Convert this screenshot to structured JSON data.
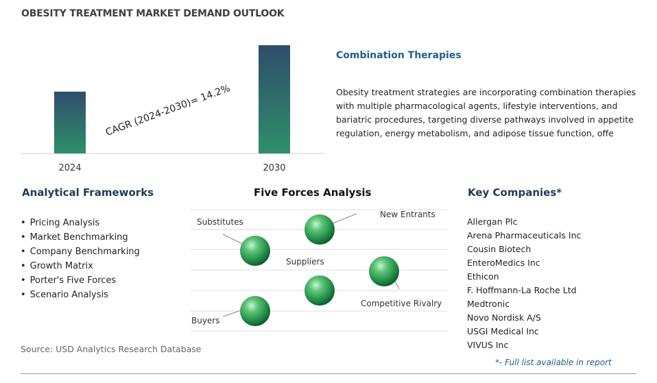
{
  "title": "OBESITY TREATMENT MARKET DEMAND OUTLOOK",
  "chart_data": {
    "type": "bar",
    "categories": [
      "2024",
      "2030"
    ],
    "values": [
      1,
      1.75
    ],
    "annotation": "CAGR (2024-2030)=  14.2%",
    "colors": {
      "bar_top": "#2f4d6b",
      "bar_bottom": "#2f8f6a"
    }
  },
  "combination": {
    "heading": "Combination Therapies",
    "text": "Obesity treatment strategies are incorporating combination therapies with multiple pharmacological agents, lifestyle interventions, and bariatric procedures, targeting diverse pathways involved in appetite regulation, energy metabolism, and adipose tissue function, offe"
  },
  "frameworks": {
    "heading": "Analytical Frameworks",
    "items": [
      "Pricing Analysis",
      "Market Benchmarking",
      "Company Benchmarking",
      "Growth Matrix",
      "Porter's Five Forces",
      "Scenario Analysis"
    ]
  },
  "five_forces": {
    "heading": "Five Forces Analysis",
    "labels": {
      "substitutes": "Substitutes",
      "new_entrants": "New Entrants",
      "suppliers": "Suppliers",
      "competitive_rivalry": "Competitive Rivalry",
      "buyers": "Buyers"
    },
    "icon": "green-sphere-icon"
  },
  "companies": {
    "heading": "Key Companies*",
    "items": [
      "Allergan Plc",
      "Arena Pharmaceuticals Inc",
      "Cousin Biotech",
      "EnteroMedics Inc",
      "Ethicon",
      "F. Hoffmann-La Roche Ltd",
      "Medtronic",
      "Novo Nordisk A/S",
      "USGI Medical Inc",
      "VIVUS Inc"
    ],
    "footnote": "*- Full list available in report"
  },
  "source": "Source: USD Analytics Research Database"
}
